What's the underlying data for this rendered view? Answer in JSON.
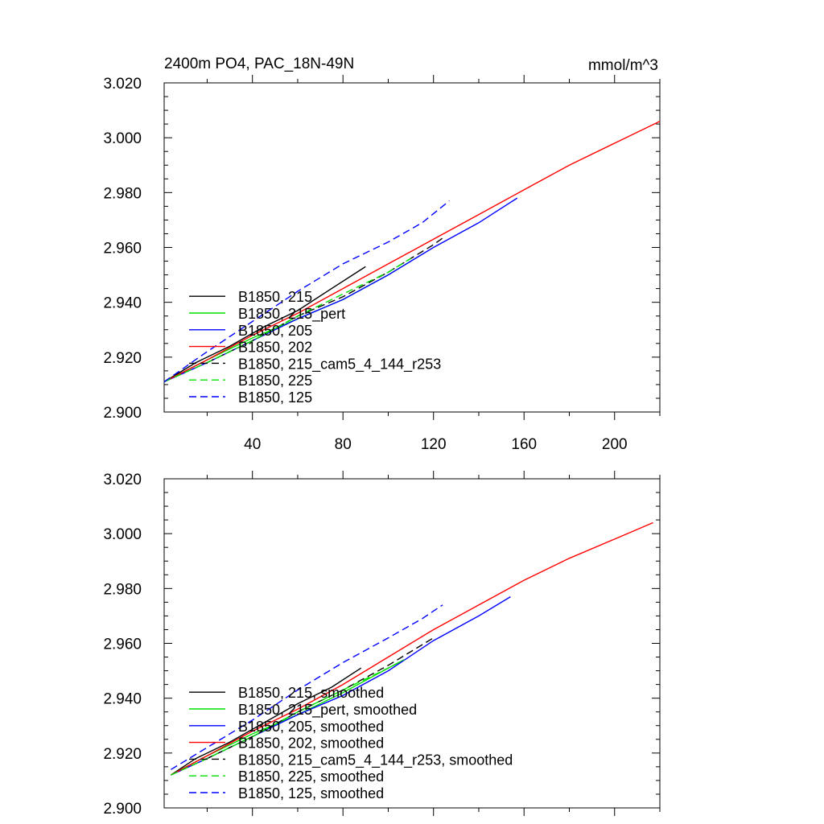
{
  "chart_data": [
    {
      "type": "line",
      "title": "2400m PO4, PAC_18N-49N",
      "units": "mmol/m^3",
      "xlabel": "",
      "ylabel": "",
      "xlim": [
        1,
        220
      ],
      "ylim": [
        2.9,
        3.02
      ],
      "yticks": [
        "2.900",
        "2.920",
        "2.940",
        "2.960",
        "2.980",
        "3.000",
        "3.020"
      ],
      "xticks": [
        "40",
        "80",
        "120",
        "160",
        "200"
      ],
      "show_xtick_labels": true,
      "legend_position": "bottom-left",
      "series": [
        {
          "name": "B1850, 215",
          "color": "#000000",
          "dash": "solid",
          "x": [
            1,
            15,
            30,
            45,
            60,
            75,
            90
          ],
          "y": [
            2.911,
            2.918,
            2.924,
            2.931,
            2.937,
            2.945,
            2.953
          ]
        },
        {
          "name": "B1850, 215_pert",
          "color": "#00e000",
          "dash": "solid",
          "x": [
            1,
            20,
            40,
            60,
            80,
            100,
            110
          ],
          "y": [
            2.911,
            2.919,
            2.927,
            2.934,
            2.941,
            2.95,
            2.955
          ]
        },
        {
          "name": "B1850, 205",
          "color": "#0000ff",
          "dash": "solid",
          "x": [
            1,
            20,
            40,
            60,
            80,
            100,
            120,
            140,
            157
          ],
          "y": [
            2.911,
            2.918,
            2.926,
            2.934,
            2.941,
            2.95,
            2.96,
            2.969,
            2.978
          ]
        },
        {
          "name": "B1850, 202",
          "color": "#ff0000",
          "dash": "solid",
          "x": [
            1,
            20,
            40,
            60,
            80,
            100,
            120,
            140,
            160,
            180,
            200,
            220
          ],
          "y": [
            2.911,
            2.919,
            2.928,
            2.936,
            2.945,
            2.954,
            2.963,
            2.972,
            2.981,
            2.99,
            2.998,
            3.006
          ]
        },
        {
          "name": "B1850, 215_cam5_4_144_r253",
          "color": "#000000",
          "dash": "dashed",
          "x": [
            20,
            40,
            60,
            80,
            100,
            120,
            125
          ],
          "y": [
            2.918,
            2.926,
            2.935,
            2.942,
            2.951,
            2.961,
            2.964
          ]
        },
        {
          "name": "B1850, 225",
          "color": "#00e000",
          "dash": "dashed",
          "x": [
            1,
            20,
            40,
            60,
            80,
            100,
            110
          ],
          "y": [
            2.911,
            2.918,
            2.926,
            2.935,
            2.943,
            2.951,
            2.956
          ]
        },
        {
          "name": "B1850, 125",
          "color": "#0000ff",
          "dash": "dashed",
          "x": [
            1,
            20,
            40,
            60,
            80,
            100,
            115,
            127
          ],
          "y": [
            2.911,
            2.922,
            2.933,
            2.944,
            2.954,
            2.962,
            2.969,
            2.977
          ]
        }
      ]
    },
    {
      "type": "line",
      "title": "",
      "units": "",
      "xlabel": "",
      "ylabel": "",
      "xlim": [
        1,
        220
      ],
      "ylim": [
        2.9,
        3.02
      ],
      "yticks": [
        "2.900",
        "2.920",
        "2.940",
        "2.960",
        "2.980",
        "3.000",
        "3.020"
      ],
      "xticks": [
        "40",
        "80",
        "120",
        "160",
        "200"
      ],
      "show_xtick_labels": false,
      "legend_position": "bottom-left",
      "series": [
        {
          "name": "B1850, 215, smoothed",
          "color": "#000000",
          "dash": "solid",
          "x": [
            4,
            15,
            30,
            45,
            60,
            75,
            88
          ],
          "y": [
            2.912,
            2.918,
            2.924,
            2.931,
            2.938,
            2.944,
            2.951
          ]
        },
        {
          "name": "B1850, 215_pert, smoothed",
          "color": "#00e000",
          "dash": "solid",
          "x": [
            4,
            20,
            40,
            60,
            80,
            100,
            107
          ],
          "y": [
            2.912,
            2.919,
            2.927,
            2.934,
            2.942,
            2.951,
            2.954
          ]
        },
        {
          "name": "B1850, 205, smoothed",
          "color": "#0000ff",
          "dash": "solid",
          "x": [
            4,
            20,
            40,
            60,
            80,
            100,
            120,
            140,
            154
          ],
          "y": [
            2.912,
            2.918,
            2.926,
            2.934,
            2.941,
            2.95,
            2.961,
            2.97,
            2.977
          ]
        },
        {
          "name": "B1850, 202, smoothed",
          "color": "#ff0000",
          "dash": "solid",
          "x": [
            4,
            20,
            40,
            60,
            80,
            100,
            120,
            140,
            160,
            180,
            200,
            217
          ],
          "y": [
            2.912,
            2.919,
            2.928,
            2.936,
            2.945,
            2.955,
            2.965,
            2.974,
            2.983,
            2.991,
            2.998,
            3.004
          ]
        },
        {
          "name": "B1850, 215_cam5_4_144_r253, smoothed",
          "color": "#000000",
          "dash": "dashed",
          "x": [
            20,
            40,
            60,
            80,
            100,
            120
          ],
          "y": [
            2.918,
            2.926,
            2.935,
            2.943,
            2.952,
            2.962
          ]
        },
        {
          "name": "B1850, 225, smoothed",
          "color": "#00e000",
          "dash": "dashed",
          "x": [
            4,
            20,
            40,
            60,
            80,
            100,
            107
          ],
          "y": [
            2.912,
            2.918,
            2.926,
            2.935,
            2.943,
            2.951,
            2.954
          ]
        },
        {
          "name": "B1850, 125, smoothed",
          "color": "#0000ff",
          "dash": "dashed",
          "x": [
            4,
            20,
            40,
            60,
            80,
            100,
            115,
            124
          ],
          "y": [
            2.914,
            2.922,
            2.932,
            2.943,
            2.953,
            2.962,
            2.969,
            2.974
          ]
        }
      ]
    }
  ]
}
